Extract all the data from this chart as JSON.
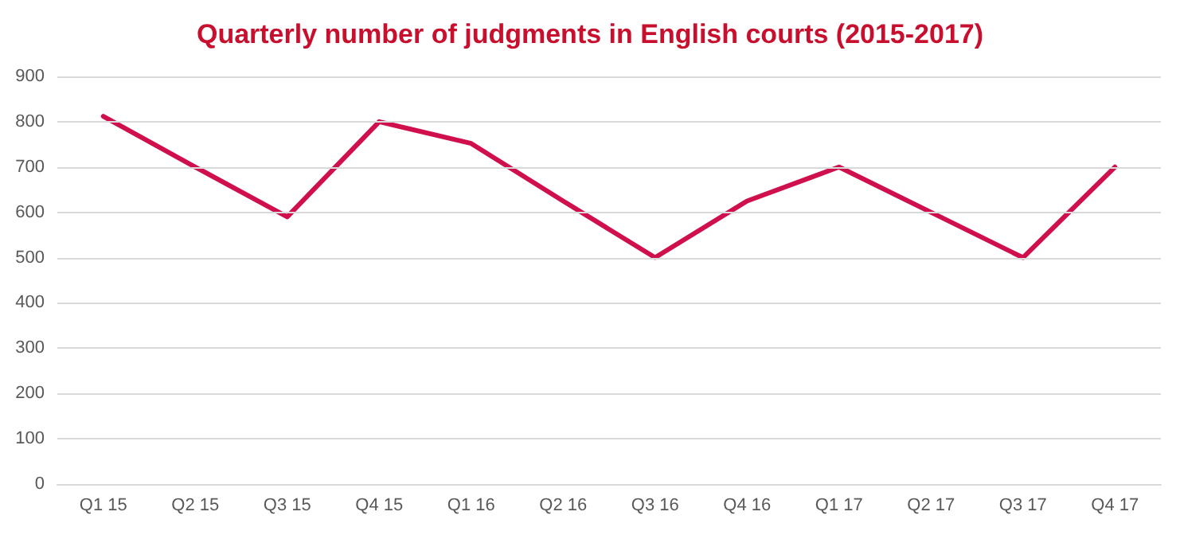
{
  "chart_data": {
    "type": "line",
    "title": "Quarterly number of judgments in English courts (2015-2017)",
    "categories": [
      "Q1 15",
      "Q2 15",
      "Q3 15",
      "Q4 15",
      "Q1 16",
      "Q2 16",
      "Q3 16",
      "Q4 16",
      "Q1 17",
      "Q2 17",
      "Q3 17",
      "Q4 17"
    ],
    "series": [
      {
        "color": "#d0104c",
        "values": [
          812,
          700,
          590,
          800,
          752,
          625,
          500,
          625,
          700,
          600,
          500,
          700
        ]
      }
    ],
    "ylim": [
      0,
      900
    ],
    "yticks": [
      0,
      100,
      200,
      300,
      400,
      500,
      600,
      700,
      800,
      900
    ],
    "grid": "y",
    "marker": "none",
    "line_style": "solid"
  }
}
